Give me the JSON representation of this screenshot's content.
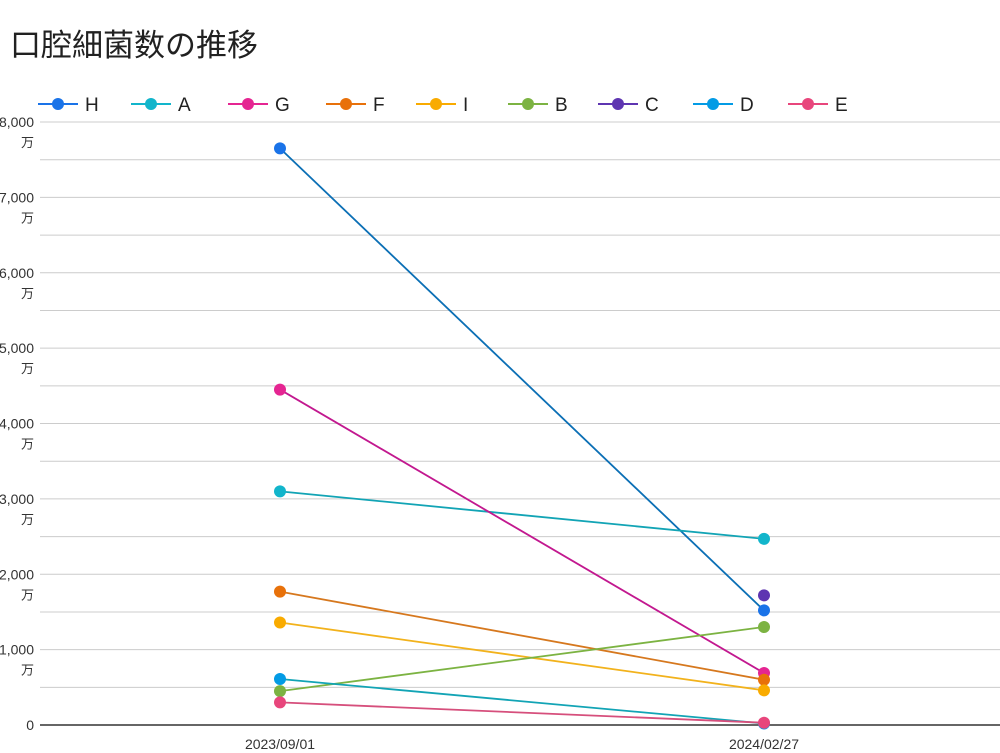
{
  "chart_data": {
    "type": "line",
    "title": "口腔細菌数の推移",
    "xlabel": "",
    "ylabel": "",
    "categories": [
      "2023/09/01",
      "2024/02/27"
    ],
    "ylim": [
      0,
      8000
    ],
    "y_unit": "万",
    "y_ticks": [
      {
        "value": 0,
        "label": "0",
        "unit": ""
      },
      {
        "value": 1000,
        "label": "1,000",
        "unit": "万"
      },
      {
        "value": 2000,
        "label": "2,000",
        "unit": "万"
      },
      {
        "value": 3000,
        "label": "3,000",
        "unit": "万"
      },
      {
        "value": 4000,
        "label": "4,000",
        "unit": "万"
      },
      {
        "value": 5000,
        "label": "5,000",
        "unit": "万"
      },
      {
        "value": 6000,
        "label": "6,000",
        "unit": "万"
      },
      {
        "value": 7000,
        "label": "7,000",
        "unit": "万"
      },
      {
        "value": 8000,
        "label": "8,000",
        "unit": "万"
      }
    ],
    "grid": true,
    "legend_position": "top",
    "series": [
      {
        "name": "H",
        "color": "#1a73e8",
        "line_color": "#0b6fb5",
        "values": [
          7650,
          1520
        ]
      },
      {
        "name": "A",
        "color": "#12b5cb",
        "line_color": "#12a4b5",
        "values": [
          3100,
          2470
        ]
      },
      {
        "name": "G",
        "color": "#e52592",
        "line_color": "#c2188f",
        "values": [
          4450,
          690
        ]
      },
      {
        "name": "F",
        "color": "#e8710a",
        "line_color": "#d6781e",
        "values": [
          1770,
          600
        ]
      },
      {
        "name": "I",
        "color": "#f9ab00",
        "line_color": "#f2b21c",
        "values": [
          1360,
          460
        ]
      },
      {
        "name": "B",
        "color": "#7cb342",
        "line_color": "#7cb342",
        "values": [
          450,
          1300
        ]
      },
      {
        "name": "C",
        "color": "#5e35b1",
        "line_color": "#5e35b1",
        "values": [
          null,
          1720
        ]
      },
      {
        "name": "D",
        "color": "#039be5",
        "line_color": "#12a4b5",
        "values": [
          610,
          20
        ]
      },
      {
        "name": "E",
        "color": "#e8467c",
        "line_color": "#d64f7c",
        "values": [
          300,
          30
        ]
      }
    ]
  }
}
